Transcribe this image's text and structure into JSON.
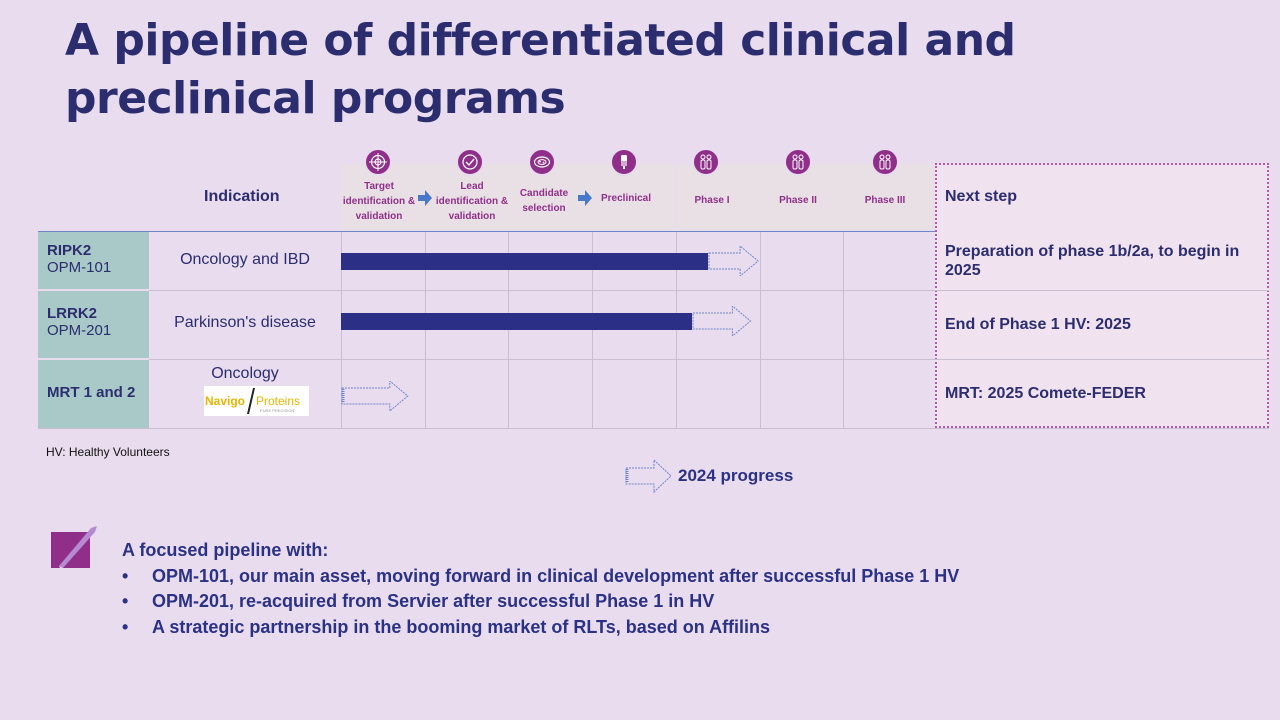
{
  "title": "A pipeline of differentiated clinical and preclinical programs",
  "table": {
    "indication_header": "Indication",
    "next_step_header": "Next step",
    "stages": [
      {
        "label": "Target identification & validation",
        "icon": "target-icon"
      },
      {
        "label": "Lead identification & validation",
        "icon": "check-circle-icon"
      },
      {
        "label": "Candidate selection",
        "icon": "petri-dish-icon"
      },
      {
        "label": "Preclinical",
        "icon": "flask-icon"
      },
      {
        "label": "Phase I",
        "icon": "people-icon"
      },
      {
        "label": "Phase II",
        "icon": "people-icon"
      },
      {
        "label": "Phase III",
        "icon": "people-icon"
      }
    ],
    "rows": [
      {
        "name": "RIPK2",
        "code": "OPM-101",
        "indication": "Oncology and IBD",
        "progress_stage_fraction": 4.4,
        "extension_stage_fraction": 5.0,
        "next_step": "Preparation of phase 1b/2a, to begin in 2025"
      },
      {
        "name": "LRRK2",
        "code": "OPM-201",
        "indication": "Parkinson's disease",
        "progress_stage_fraction": 4.2,
        "extension_stage_fraction": 4.9,
        "next_step": "End of Phase 1 HV: 2025"
      },
      {
        "name": "MRT 1 and 2",
        "code": "",
        "indication": "Oncology",
        "logo_left": "Navigo",
        "logo_right": "Proteins",
        "logo_tagline": "PURE PRECISION",
        "progress_stage_fraction": 0,
        "extension_stage_fraction": 0.8,
        "next_step": "MRT: 2025 Comete-FEDER"
      }
    ]
  },
  "footnote": "HV: Healthy Volunteers",
  "legend": {
    "label": "2024 progress"
  },
  "summary": {
    "heading": "A focused pipeline with:",
    "bullet_symbol": "•",
    "bullets": [
      "OPM-101, our main asset, moving forward in clinical development after successful Phase 1 HV",
      "OPM-201, re-acquired from Servier after successful Phase 1 in HV",
      "A strategic partnership in the booming market of RLTs, based on Affilins"
    ]
  },
  "colors": {
    "background": "#e8dcee",
    "title": "#2b2d6e",
    "bar": "#2b2f86",
    "accent_purple": "#8f2f8a",
    "stage_arrow": "#4a78c8",
    "row_header": "#a9c9c9",
    "next_step_bg": "#f0e2ee"
  }
}
